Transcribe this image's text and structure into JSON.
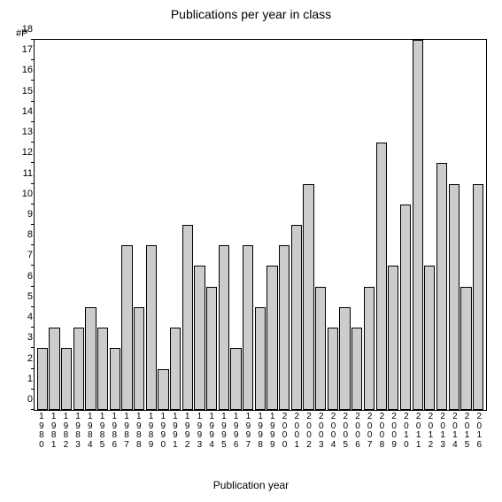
{
  "chart": {
    "type": "bar",
    "title": "Publications per year in class",
    "title_fontsize": 14,
    "y_axis_label": "#P",
    "x_axis_label": "Publication year",
    "label_fontsize": 12,
    "categories": [
      "1980",
      "1981",
      "1982",
      "1983",
      "1984",
      "1985",
      "1986",
      "1987",
      "1988",
      "1989",
      "1990",
      "1991",
      "1992",
      "1993",
      "1994",
      "1995",
      "1996",
      "1997",
      "1998",
      "1999",
      "2000",
      "2001",
      "2002",
      "2003",
      "2004",
      "2005",
      "2006",
      "2007",
      "2008",
      "2009",
      "2010",
      "2011",
      "2012",
      "2013",
      "2014",
      "2015",
      "2016"
    ],
    "values": [
      3,
      4,
      3,
      4,
      5,
      4,
      3,
      8,
      5,
      8,
      2,
      4,
      9,
      7,
      6,
      8,
      3,
      8,
      5,
      7,
      8,
      9,
      11,
      6,
      4,
      5,
      4,
      6,
      13,
      7,
      10,
      18,
      7,
      12,
      11,
      6,
      11
    ],
    "bar_color": "#cccccc",
    "bar_border_color": "#000000",
    "background_color": "#ffffff",
    "axis_color": "#000000",
    "ylim": [
      0,
      18
    ],
    "ytick_step": 1,
    "bar_width": 0.9,
    "tick_fontsize": 11
  }
}
